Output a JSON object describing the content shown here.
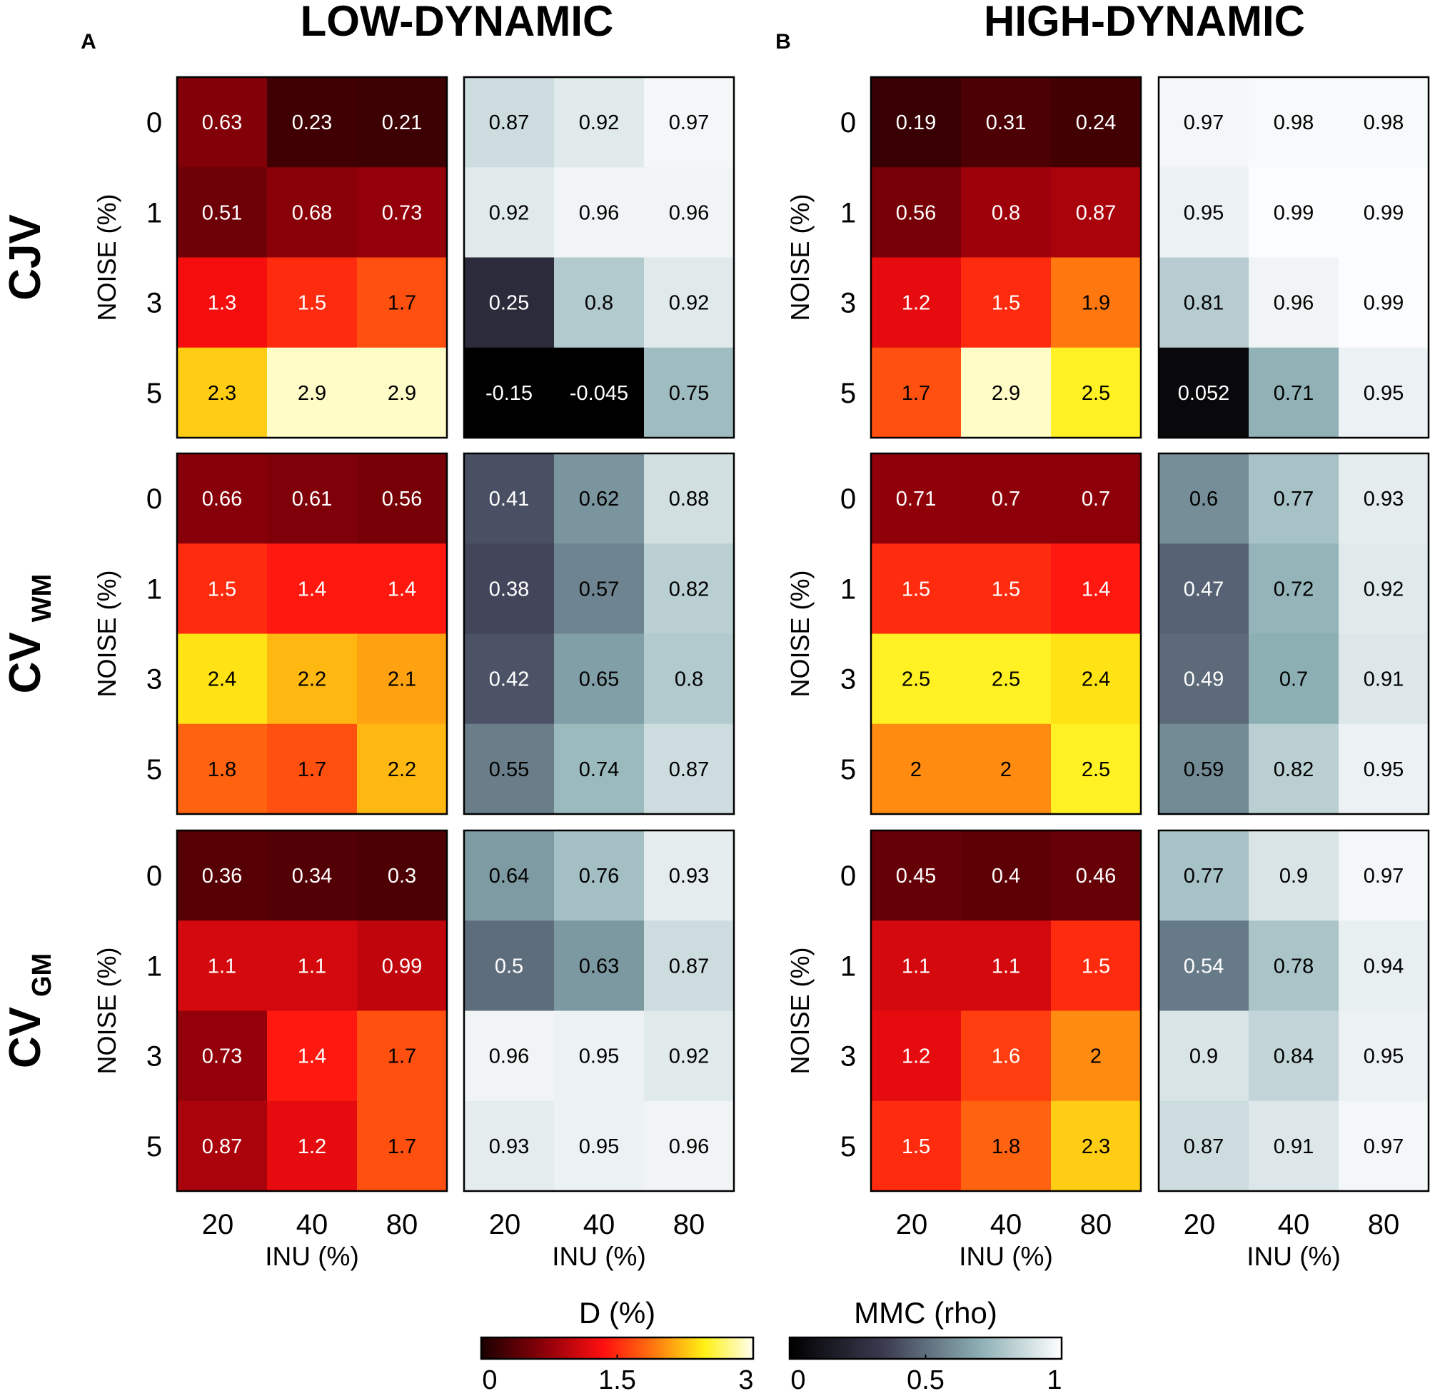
{
  "titles": {
    "low": "LOW-DYNAMIC",
    "high": "HIGH-DYNAMIC",
    "panel_a": "A",
    "panel_b": "B"
  },
  "rows": [
    {
      "label": "CJV",
      "sub": ""
    },
    {
      "label": "CV",
      "sub": "WM"
    },
    {
      "label": "CV",
      "sub": "GM"
    }
  ],
  "ylabel": "NOISE (%)",
  "xlabel": "INU (%)",
  "chart_data": {
    "type": "heatmap",
    "x_categories": [
      "20",
      "40",
      "80"
    ],
    "y_categories": [
      "0",
      "1",
      "3",
      "5"
    ],
    "colorbars": [
      {
        "label": "D (%)",
        "range": [
          0,
          3
        ],
        "ticks": [
          "0",
          "1.5",
          "3"
        ],
        "colormap": "hot"
      },
      {
        "label": "MMC (rho)",
        "range": [
          0,
          1
        ],
        "ticks": [
          "0",
          "0.5",
          "1"
        ],
        "colormap": "bone"
      }
    ],
    "panels": [
      {
        "group": "LOW-DYNAMIC",
        "metric": "CJV",
        "measure": "D (%)",
        "labels": [
          [
            "0.63",
            "0.23",
            "0.21"
          ],
          [
            "0.51",
            "0.68",
            "0.73"
          ],
          [
            "1.3",
            "1.5",
            "1.7"
          ],
          [
            "2.3",
            "2.9",
            "2.9"
          ]
        ]
      },
      {
        "group": "LOW-DYNAMIC",
        "metric": "CJV",
        "measure": "MMC (rho)",
        "labels": [
          [
            "0.87",
            "0.92",
            "0.97"
          ],
          [
            "0.92",
            "0.96",
            "0.96"
          ],
          [
            "0.25",
            "0.8",
            "0.92"
          ],
          [
            "-0.15",
            "-0.045",
            "0.75"
          ]
        ]
      },
      {
        "group": "HIGH-DYNAMIC",
        "metric": "CJV",
        "measure": "D (%)",
        "labels": [
          [
            "0.19",
            "0.31",
            "0.24"
          ],
          [
            "0.56",
            "0.8",
            "0.87"
          ],
          [
            "1.2",
            "1.5",
            "1.9"
          ],
          [
            "1.7",
            "2.9",
            "2.5"
          ]
        ]
      },
      {
        "group": "HIGH-DYNAMIC",
        "metric": "CJV",
        "measure": "MMC (rho)",
        "labels": [
          [
            "0.97",
            "0.98",
            "0.98"
          ],
          [
            "0.95",
            "0.99",
            "0.99"
          ],
          [
            "0.81",
            "0.96",
            "0.99"
          ],
          [
            "0.052",
            "0.71",
            "0.95"
          ]
        ]
      },
      {
        "group": "LOW-DYNAMIC",
        "metric": "CV WM",
        "measure": "D (%)",
        "labels": [
          [
            "0.66",
            "0.61",
            "0.56"
          ],
          [
            "1.5",
            "1.4",
            "1.4"
          ],
          [
            "2.4",
            "2.2",
            "2.1"
          ],
          [
            "1.8",
            "1.7",
            "2.2"
          ]
        ]
      },
      {
        "group": "LOW-DYNAMIC",
        "metric": "CV WM",
        "measure": "MMC (rho)",
        "labels": [
          [
            "0.41",
            "0.62",
            "0.88"
          ],
          [
            "0.38",
            "0.57",
            "0.82"
          ],
          [
            "0.42",
            "0.65",
            "0.8"
          ],
          [
            "0.55",
            "0.74",
            "0.87"
          ]
        ]
      },
      {
        "group": "HIGH-DYNAMIC",
        "metric": "CV WM",
        "measure": "D (%)",
        "labels": [
          [
            "0.71",
            "0.7",
            "0.7"
          ],
          [
            "1.5",
            "1.5",
            "1.4"
          ],
          [
            "2.5",
            "2.5",
            "2.4"
          ],
          [
            "2",
            "2",
            "2.5"
          ]
        ]
      },
      {
        "group": "HIGH-DYNAMIC",
        "metric": "CV WM",
        "measure": "MMC (rho)",
        "labels": [
          [
            "0.6",
            "0.77",
            "0.93"
          ],
          [
            "0.47",
            "0.72",
            "0.92"
          ],
          [
            "0.49",
            "0.7",
            "0.91"
          ],
          [
            "0.59",
            "0.82",
            "0.95"
          ]
        ]
      },
      {
        "group": "LOW-DYNAMIC",
        "metric": "CV GM",
        "measure": "D (%)",
        "labels": [
          [
            "0.36",
            "0.34",
            "0.3"
          ],
          [
            "1.1",
            "1.1",
            "0.99"
          ],
          [
            "0.73",
            "1.4",
            "1.7"
          ],
          [
            "0.87",
            "1.2",
            "1.7"
          ]
        ]
      },
      {
        "group": "LOW-DYNAMIC",
        "metric": "CV GM",
        "measure": "MMC (rho)",
        "labels": [
          [
            "0.64",
            "0.76",
            "0.93"
          ],
          [
            "0.5",
            "0.63",
            "0.87"
          ],
          [
            "0.96",
            "0.95",
            "0.92"
          ],
          [
            "0.93",
            "0.95",
            "0.96"
          ]
        ]
      },
      {
        "group": "HIGH-DYNAMIC",
        "metric": "CV GM",
        "measure": "D (%)",
        "labels": [
          [
            "0.45",
            "0.4",
            "0.46"
          ],
          [
            "1.1",
            "1.1",
            "1.5"
          ],
          [
            "1.2",
            "1.6",
            "2"
          ],
          [
            "1.5",
            "1.8",
            "2.3"
          ]
        ]
      },
      {
        "group": "HIGH-DYNAMIC",
        "metric": "CV GM",
        "measure": "MMC (rho)",
        "labels": [
          [
            "0.77",
            "0.9",
            "0.97"
          ],
          [
            "0.54",
            "0.78",
            "0.94"
          ],
          [
            "0.9",
            "0.84",
            "0.95"
          ],
          [
            "0.87",
            "0.91",
            "0.97"
          ]
        ]
      }
    ]
  }
}
